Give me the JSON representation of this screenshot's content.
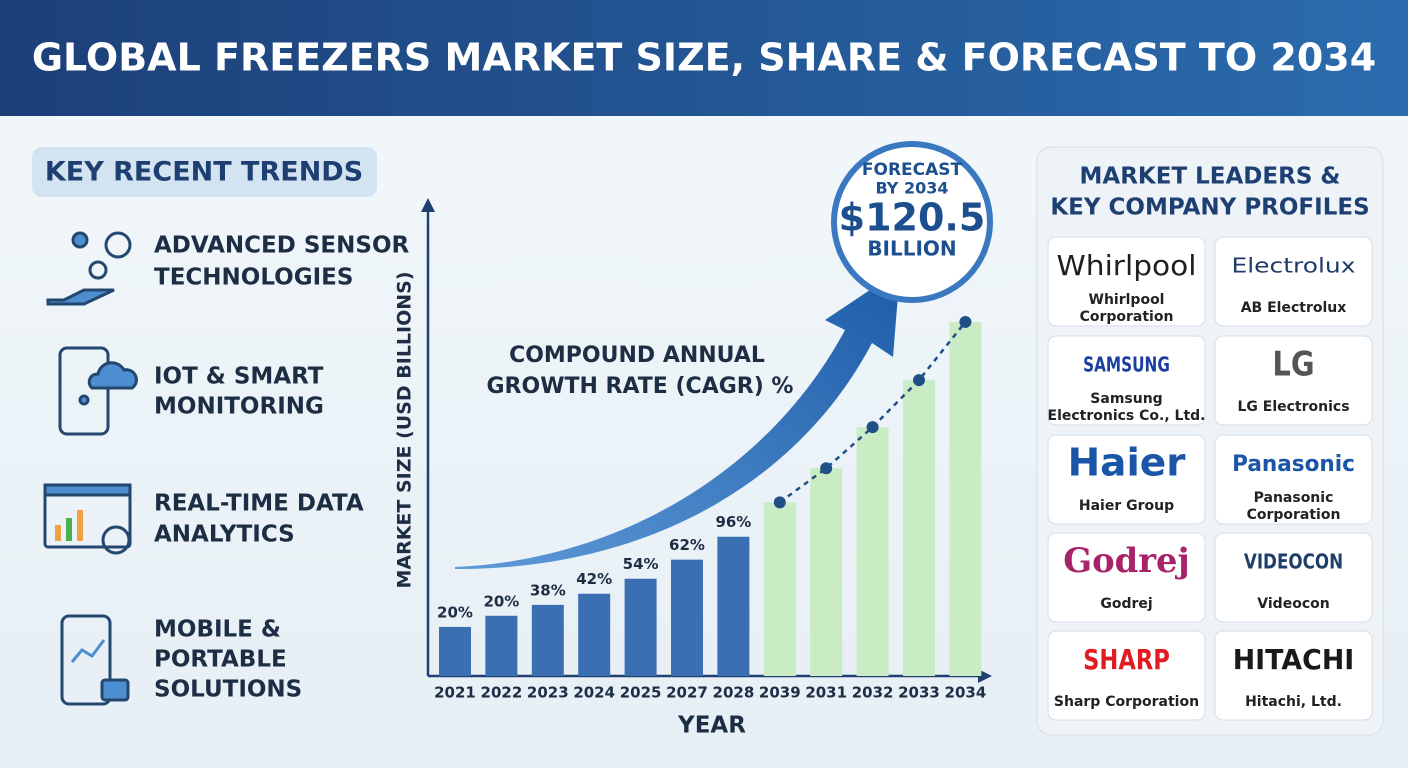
{
  "header": {
    "title": "GLOBAL FREEZERS MARKET SIZE, SHARE & FORECAST TO 2034"
  },
  "trends": {
    "title": "KEY RECENT TRENDS",
    "items": [
      [
        "ADVANCED SENSOR",
        "TECHNOLOGIES"
      ],
      [
        "IOT & SMART",
        "MONITORING"
      ],
      [
        "REAL-TIME DATA",
        "ANALYTICS"
      ],
      [
        "MOBILE &",
        "PORTABLE",
        "SOLUTIONS"
      ]
    ]
  },
  "chart_data": {
    "type": "bar",
    "y_label": "MARKET SIZE (USD BILLIONS)",
    "x_label": "YEAR",
    "annotation": [
      "COMPOUND ANNUAL",
      "GROWTH RATE (CAGR) %"
    ],
    "forecast": [
      "FORECAST",
      "BY 2034",
      "$120.5",
      "BILLION"
    ],
    "categories": [
      "2021",
      "2022",
      "2023",
      "2024",
      "2025",
      "2027",
      "2028",
      "2039",
      "2031",
      "2032",
      "2033",
      "2034"
    ],
    "values": [
      16.7,
      20.5,
      24.2,
      28.0,
      33.1,
      39.6,
      47.4,
      59.1,
      70.7,
      84.7,
      100.7,
      120.5
    ],
    "bar_labels": [
      "20%",
      "20%",
      "38%",
      "42%",
      "54%",
      "62%",
      "96%",
      null,
      null,
      null,
      null,
      null
    ],
    "colors": [
      "#3a70b2",
      "#3a70b2",
      "#3a70b2",
      "#3a70b2",
      "#3a70b2",
      "#3a70b2",
      "#3a70b2",
      "#c9ecc5",
      "#c9ecc5",
      "#c9ecc5",
      "#c9ecc5",
      "#c9ecc5"
    ],
    "trend": [
      null,
      null,
      null,
      null,
      null,
      null,
      null,
      59.1,
      70.7,
      84.7,
      100.7,
      120.5
    ],
    "trend_color": "#1f4f86",
    "ylim": [
      0,
      162
    ]
  },
  "companies": {
    "title": [
      "MARKET LEADERS &",
      "KEY COMPANY PROFILES"
    ],
    "items": [
      {
        "logo": "Whirlpool",
        "name": [
          "Whirlpool",
          "Corporation"
        ]
      },
      {
        "logo": "Electrolux",
        "name": [
          "AB Electrolux"
        ]
      },
      {
        "logo": "SAMSUNG",
        "name": [
          "Samsung",
          "Electronics Co., Ltd."
        ]
      },
      {
        "logo": "LG",
        "name": [
          "LG Electronics"
        ]
      },
      {
        "logo": "Haier",
        "name": [
          "Haier Group"
        ]
      },
      {
        "logo": "Panasonic",
        "name": [
          "Panasonic",
          "Corporation"
        ]
      },
      {
        "logo": "Godrej",
        "name": [
          "Godrej"
        ]
      },
      {
        "logo": "VIDEOCON",
        "name": [
          "Videocon"
        ]
      },
      {
        "logo": "SHARP",
        "name": [
          "Sharp Corporation"
        ]
      },
      {
        "logo": "HITACHI",
        "name": [
          "Hitachi, Ltd."
        ]
      }
    ]
  }
}
